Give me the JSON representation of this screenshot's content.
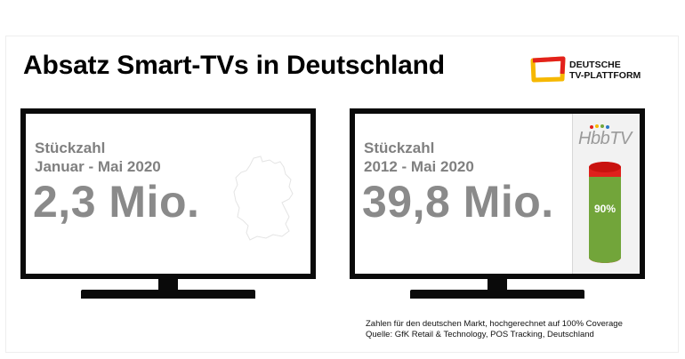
{
  "title": "Absatz Smart-TVs in Deutschland",
  "logo": {
    "line1": "DEUTSCHE",
    "line2": "TV-PLATTFORM",
    "colors": {
      "red": "#e3211c",
      "yellow": "#f6b800",
      "black": "#111111"
    }
  },
  "tv_left": {
    "label_line1": "Stückzahl",
    "label_line2": "Januar - Mai 2020",
    "value": "2,3 Mio.",
    "map_icon": "germany-map-icon"
  },
  "tv_right": {
    "label_line1": "Stückzahl",
    "label_line2": "2012 - Mai 2020",
    "value": "39,8 Mio.",
    "hbbtv": {
      "logo_text": "HbbTV",
      "share_label": "90%",
      "share_fraction": 0.9,
      "colors": {
        "fill": "#72a53a",
        "rest": "#e0201c"
      }
    }
  },
  "footnote": {
    "line1": "Zahlen für den deutschen Markt, hochgerechnet auf 100% Coverage",
    "line2": "Quelle: GfK Retail & Technology, POS Tracking, Deutschland"
  }
}
